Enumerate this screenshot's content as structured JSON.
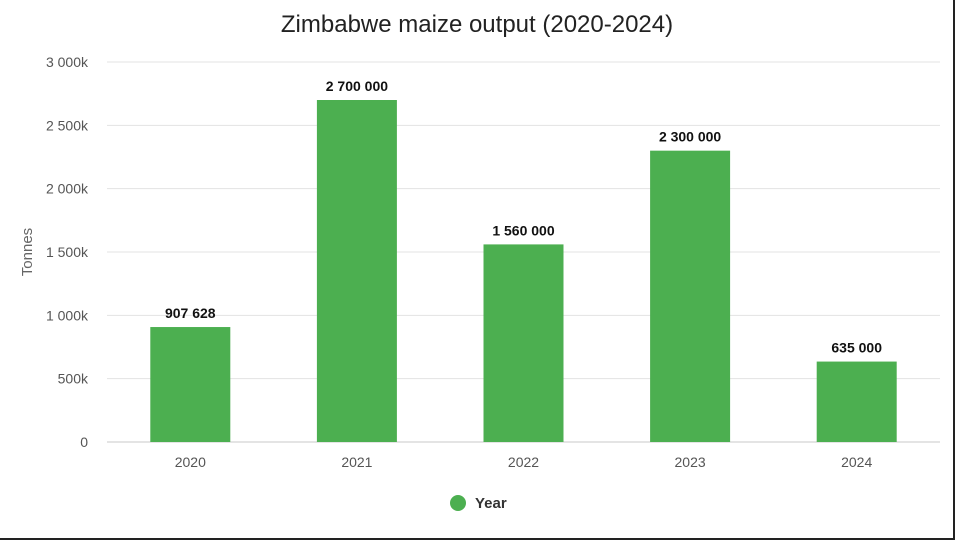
{
  "chart_data": {
    "type": "bar",
    "title": "Zimbabwe maize output (2020-2024)",
    "xlabel": "",
    "ylabel": "Tonnes",
    "categories": [
      "2020",
      "2021",
      "2022",
      "2023",
      "2024"
    ],
    "series": [
      {
        "name": "Year",
        "values": [
          907628,
          2700000,
          1560000,
          2300000,
          635000
        ],
        "data_labels": [
          "907 628",
          "2 700 000",
          "1 560 000",
          "2 300 000",
          "635 000"
        ],
        "color": "#4caf50"
      }
    ],
    "ylim": [
      0,
      3000000
    ],
    "yticks": [
      0,
      500000,
      1000000,
      1500000,
      2000000,
      2500000,
      3000000
    ],
    "ytick_labels": [
      "0",
      "500k",
      "1 000k",
      "1 500k",
      "2 000k",
      "2 500k",
      "3 000k"
    ],
    "grid": true,
    "legend_position": "bottom-center"
  }
}
